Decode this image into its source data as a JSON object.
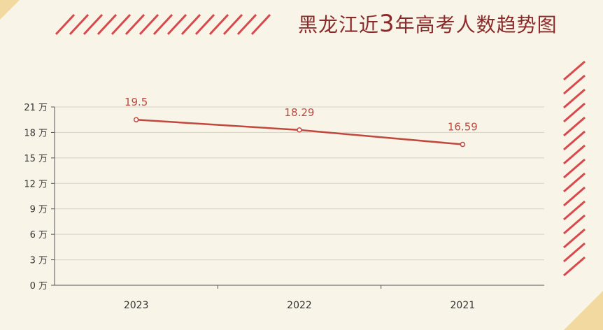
{
  "title": {
    "prefix": "黑龙江近",
    "number": "3",
    "suffix": "年高考人数趋势图"
  },
  "colors": {
    "background": "#f8f4e7",
    "line": "#c0483f",
    "label": "#c0483f",
    "title": "#8b2a2a",
    "stripes": "#d9484b",
    "corner": "#f2d9a0"
  },
  "chart_data": {
    "type": "line",
    "title": "黑龙江近3年高考人数趋势图",
    "xlabel": "",
    "ylabel": "",
    "categories": [
      "2023",
      "2022",
      "2021"
    ],
    "series": [
      {
        "values": [
          19.5,
          18.29,
          16.59
        ]
      }
    ],
    "data_labels": [
      "19.5",
      "18.29",
      "16.59"
    ],
    "ylim": [
      0,
      21
    ],
    "yticks": [
      0,
      3,
      6,
      9,
      12,
      15,
      18,
      21
    ],
    "ytick_labels": [
      "0 万",
      "3 万",
      "6 万",
      "9 万",
      "12 万",
      "15 万",
      "18 万",
      "21 万"
    ],
    "grid": true,
    "legend": "none"
  }
}
